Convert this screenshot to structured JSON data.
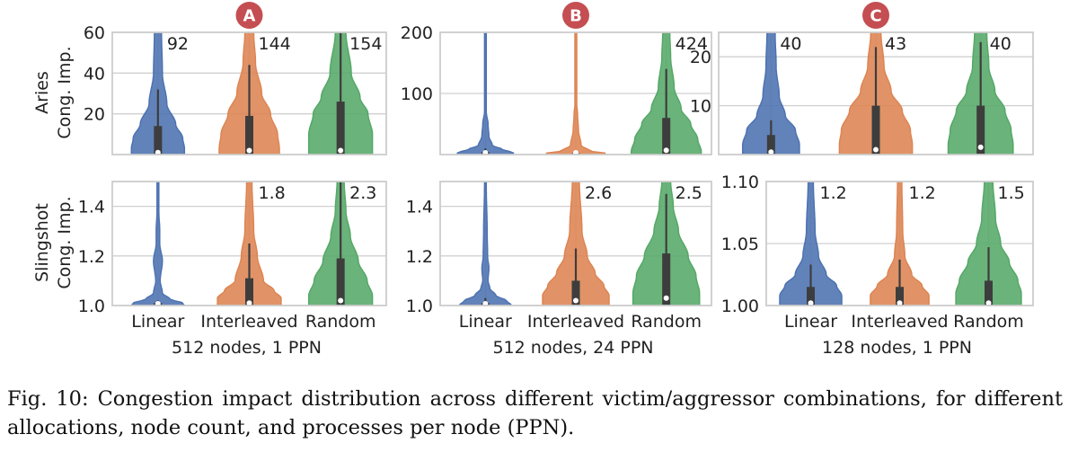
{
  "caption": "Fig. 10: Congestion impact distribution across different victim/aggressor combinations, for different allocations, node count, and processes per node (PPN).",
  "rows": [
    {
      "ylabel_line1": "Aries",
      "ylabel_line2": "Cong. Imp."
    },
    {
      "ylabel_line1": "Slingshot",
      "ylabel_line2": "Cong. Imp."
    }
  ],
  "colors": {
    "Linear": "#4c72b0",
    "Interleaved": "#dd8452",
    "Random": "#55a868",
    "badge": "#c44e52",
    "box": "#3d3d3d",
    "grid": "#d0d0d0"
  },
  "chart_data": [
    {
      "type": "violin",
      "panel": "A",
      "row": "Aries",
      "badge": "A",
      "xlabel": "512 nodes, 1 PPN",
      "categories": [
        "Linear",
        "Interleaved",
        "Random"
      ],
      "ylim": [
        0,
        60
      ],
      "yticks": [
        20,
        40,
        60
      ],
      "tick_labels": [
        "20",
        "40",
        "60"
      ],
      "grid": true,
      "series": [
        {
          "name": "Linear",
          "annotation": "92",
          "median": 1,
          "q1": 0,
          "q3": 14,
          "whisker_hi": 32,
          "profile": [
            [
              0,
              30
            ],
            [
              3,
              30
            ],
            [
              8,
              28
            ],
            [
              15,
              20
            ],
            [
              25,
              10
            ],
            [
              40,
              5
            ],
            [
              60,
              4
            ]
          ]
        },
        {
          "name": "Interleaved",
          "annotation": "144",
          "median": 2,
          "q1": 0,
          "q3": 19,
          "whisker_hi": 44,
          "profile": [
            [
              0,
              34
            ],
            [
              3,
              34
            ],
            [
              10,
              32
            ],
            [
              20,
              24
            ],
            [
              30,
              14
            ],
            [
              45,
              7
            ],
            [
              60,
              5
            ]
          ]
        },
        {
          "name": "Random",
          "annotation": "154",
          "median": 2,
          "q1": 0,
          "q3": 26,
          "whisker_hi": 60,
          "profile": [
            [
              0,
              36
            ],
            [
              3,
              36
            ],
            [
              10,
              36
            ],
            [
              20,
              31
            ],
            [
              28,
              22
            ],
            [
              40,
              12
            ],
            [
              60,
              6
            ]
          ]
        }
      ]
    },
    {
      "type": "violin",
      "panel": "B",
      "row": "Aries",
      "badge": "B",
      "xlabel": "512 nodes, 24 PPN",
      "categories": [
        "Linear",
        "Interleaved",
        "Random"
      ],
      "ylim": [
        0,
        200
      ],
      "yticks": [
        100,
        200
      ],
      "tick_labels": [
        "100",
        "200"
      ],
      "grid": true,
      "series": [
        {
          "name": "Linear",
          "annotation": "",
          "median": 2,
          "q1": 0,
          "q3": 4,
          "whisker_hi": 10,
          "profile": [
            [
              0,
              32
            ],
            [
              3,
              32
            ],
            [
              8,
              20
            ],
            [
              15,
              8
            ],
            [
              30,
              4
            ],
            [
              50,
              3
            ],
            [
              70,
              1
            ]
          ]
        },
        {
          "name": "Interleaved",
          "annotation": "",
          "median": 1,
          "q1": 0,
          "q3": 2,
          "whisker_hi": 6,
          "profile": [
            [
              0,
              34
            ],
            [
              2,
              34
            ],
            [
              6,
              16
            ],
            [
              15,
              6
            ],
            [
              40,
              3
            ],
            [
              65,
              2
            ],
            [
              83,
              1
            ]
          ]
        },
        {
          "name": "Random",
          "annotation": "424",
          "median": 7,
          "q1": 0,
          "q3": 60,
          "whisker_hi": 140,
          "profile": [
            [
              0,
              40
            ],
            [
              5,
              40
            ],
            [
              25,
              36
            ],
            [
              50,
              28
            ],
            [
              75,
              17
            ],
            [
              110,
              9
            ],
            [
              160,
              5
            ],
            [
              200,
              4
            ]
          ]
        }
      ]
    },
    {
      "type": "violin",
      "panel": "C",
      "row": "Aries",
      "badge": "C",
      "xlabel": "128 nodes, 1 PPN",
      "categories": [
        "Linear",
        "Interleaved",
        "Random"
      ],
      "ylim": [
        0,
        25
      ],
      "yticks": [
        10,
        20
      ],
      "tick_labels": [
        "10",
        "20"
      ],
      "grid": true,
      "series": [
        {
          "name": "Linear",
          "annotation": "40",
          "median": 0.5,
          "q1": 0,
          "q3": 4,
          "whisker_hi": 7,
          "profile": [
            [
              0,
              28
            ],
            [
              2,
              28
            ],
            [
              5,
              24
            ],
            [
              8,
              14
            ],
            [
              12,
              8
            ],
            [
              18,
              5
            ],
            [
              25,
              4
            ]
          ]
        },
        {
          "name": "Interleaved",
          "annotation": "43",
          "median": 1,
          "q1": 0,
          "q3": 10,
          "whisker_hi": 22,
          "profile": [
            [
              0,
              36
            ],
            [
              2,
              36
            ],
            [
              5,
              34
            ],
            [
              9,
              26
            ],
            [
              13,
              15
            ],
            [
              18,
              8
            ],
            [
              25,
              5
            ]
          ]
        },
        {
          "name": "Random",
          "annotation": "40",
          "median": 1.5,
          "q1": 0,
          "q3": 10,
          "whisker_hi": 23,
          "profile": [
            [
              0,
              32
            ],
            [
              2,
              32
            ],
            [
              5,
              30
            ],
            [
              9,
              24
            ],
            [
              13,
              14
            ],
            [
              18,
              8
            ],
            [
              25,
              6
            ]
          ]
        }
      ]
    },
    {
      "type": "violin",
      "panel": "A",
      "row": "Slingshot",
      "xlabel": "512 nodes, 1 PPN",
      "categories": [
        "Linear",
        "Interleaved",
        "Random"
      ],
      "ylim": [
        1.0,
        1.5
      ],
      "yticks": [
        1.0,
        1.2,
        1.4
      ],
      "tick_labels": [
        "1.0",
        "1.2",
        "1.4"
      ],
      "grid": true,
      "series": [
        {
          "name": "Linear",
          "annotation": "",
          "median": 1.005,
          "q1": 1.0,
          "q3": 1.01,
          "whisker_hi": 1.02,
          "profile": [
            [
              1.0,
              30
            ],
            [
              1.01,
              28
            ],
            [
              1.025,
              14
            ],
            [
              1.05,
              5
            ],
            [
              1.1,
              2.5
            ],
            [
              1.18,
              5
            ],
            [
              1.25,
              2
            ],
            [
              1.3,
              2
            ],
            [
              1.38,
              1
            ]
          ]
        },
        {
          "name": "Interleaved",
          "annotation": "1.8",
          "median": 1.01,
          "q1": 1.0,
          "q3": 1.11,
          "whisker_hi": 1.25,
          "profile": [
            [
              1.0,
              36
            ],
            [
              1.03,
              36
            ],
            [
              1.06,
              28
            ],
            [
              1.1,
              16
            ],
            [
              1.2,
              9
            ],
            [
              1.3,
              5
            ],
            [
              1.5,
              3
            ]
          ]
        },
        {
          "name": "Random",
          "annotation": "2.3",
          "median": 1.02,
          "q1": 1.0,
          "q3": 1.19,
          "whisker_hi": 1.5,
          "profile": [
            [
              1.0,
              36
            ],
            [
              1.04,
              36
            ],
            [
              1.1,
              30
            ],
            [
              1.18,
              20
            ],
            [
              1.28,
              11
            ],
            [
              1.38,
              6
            ],
            [
              1.5,
              4
            ]
          ]
        }
      ]
    },
    {
      "type": "violin",
      "panel": "B",
      "row": "Slingshot",
      "xlabel": "512 nodes, 24 PPN",
      "categories": [
        "Linear",
        "Interleaved",
        "Random"
      ],
      "ylim": [
        1.0,
        1.5
      ],
      "yticks": [
        1.0,
        1.2,
        1.4
      ],
      "tick_labels": [
        "1.0",
        "1.2",
        "1.4"
      ],
      "grid": true,
      "series": [
        {
          "name": "Linear",
          "annotation": "",
          "median": 1.005,
          "q1": 1.0,
          "q3": 1.01,
          "whisker_hi": 1.03,
          "profile": [
            [
              1.0,
              30
            ],
            [
              1.02,
              24
            ],
            [
              1.04,
              12
            ],
            [
              1.07,
              5
            ],
            [
              1.1,
              3
            ],
            [
              1.15,
              4
            ],
            [
              1.2,
              2.5
            ],
            [
              1.3,
              2
            ],
            [
              1.48,
              1
            ]
          ]
        },
        {
          "name": "Interleaved",
          "annotation": "2.6",
          "median": 1.02,
          "q1": 1.0,
          "q3": 1.1,
          "whisker_hi": 1.23,
          "profile": [
            [
              1.0,
              38
            ],
            [
              1.04,
              38
            ],
            [
              1.08,
              32
            ],
            [
              1.13,
              22
            ],
            [
              1.2,
              13
            ],
            [
              1.3,
              7
            ],
            [
              1.5,
              4
            ]
          ]
        },
        {
          "name": "Random",
          "annotation": "2.5",
          "median": 1.03,
          "q1": 1.0,
          "q3": 1.21,
          "whisker_hi": 1.45,
          "profile": [
            [
              1.0,
              38
            ],
            [
              1.05,
              38
            ],
            [
              1.12,
              34
            ],
            [
              1.2,
              25
            ],
            [
              1.3,
              14
            ],
            [
              1.4,
              8
            ],
            [
              1.5,
              5
            ]
          ]
        }
      ]
    },
    {
      "type": "violin",
      "panel": "C",
      "row": "Slingshot",
      "xlabel": "128 nodes, 1 PPN",
      "categories": [
        "Linear",
        "Interleaved",
        "Random"
      ],
      "ylim": [
        1.0,
        1.1
      ],
      "yticks": [
        1.0,
        1.05,
        1.1
      ],
      "tick_labels": [
        "1.00",
        "1.05",
        "1.10"
      ],
      "grid": true,
      "series": [
        {
          "name": "Linear",
          "annotation": "1.2",
          "median": 1.002,
          "q1": 1.0,
          "q3": 1.015,
          "whisker_hi": 1.033,
          "profile": [
            [
              1.0,
              36
            ],
            [
              1.008,
              36
            ],
            [
              1.016,
              30
            ],
            [
              1.025,
              18
            ],
            [
              1.04,
              9
            ],
            [
              1.06,
              5
            ],
            [
              1.1,
              3
            ]
          ]
        },
        {
          "name": "Interleaved",
          "annotation": "1.2",
          "median": 1.002,
          "q1": 1.0,
          "q3": 1.015,
          "whisker_hi": 1.037,
          "profile": [
            [
              1.0,
              34
            ],
            [
              1.008,
              34
            ],
            [
              1.016,
              26
            ],
            [
              1.025,
              14
            ],
            [
              1.04,
              6
            ],
            [
              1.06,
              3.5
            ],
            [
              1.1,
              2.5
            ]
          ]
        },
        {
          "name": "Random",
          "annotation": "1.5",
          "median": 1.002,
          "q1": 1.0,
          "q3": 1.02,
          "whisker_hi": 1.047,
          "profile": [
            [
              1.0,
              38
            ],
            [
              1.01,
              38
            ],
            [
              1.02,
              34
            ],
            [
              1.035,
              24
            ],
            [
              1.05,
              14
            ],
            [
              1.07,
              8
            ],
            [
              1.1,
              5
            ]
          ]
        }
      ]
    }
  ]
}
